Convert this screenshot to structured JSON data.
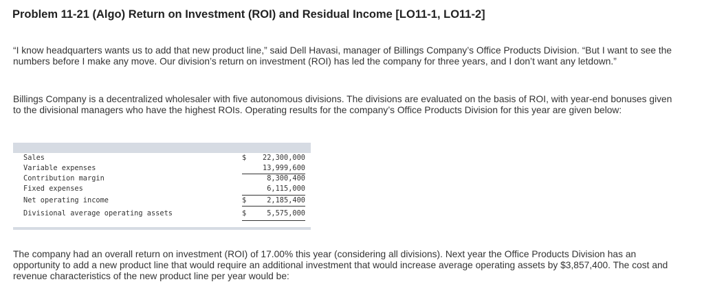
{
  "title": "Problem 11-21 (Algo) Return on Investment (ROI) and Residual Income [LO11-1, LO11-2]",
  "paragraphs": {
    "p1": "“I know headquarters wants us to add that new product line,” said Dell Havasi, manager of Billings Company’s Office Products Division. “But I want to see the numbers before I make any move. Our division’s return on investment (ROI) has led the company for three years, and I don’t want any letdown.”",
    "p2": "Billings Company is a decentralized wholesaler with five autonomous divisions. The divisions are evaluated on the basis of ROI, with year-end bonuses given to the divisional managers who have the highest ROIs. Operating results for the company’s Office Products Division for this year are given below:",
    "p3": "The company had an overall return on investment (ROI) of 17.00% this year (considering all divisions). Next year the Office Products Division has an opportunity to add a new product line that would require an additional investment that would increase average operating assets by $3,857,400. The cost and revenue characteristics of the new product line per year would be:"
  },
  "table": {
    "rows": [
      {
        "label": "Sales",
        "currency": "$",
        "amount": "22,300,000"
      },
      {
        "label": "Variable expenses",
        "currency": "",
        "amount": "13,999,600"
      },
      {
        "label": "Contribution margin",
        "currency": "",
        "amount": "8,300,400"
      },
      {
        "label": "Fixed expenses",
        "currency": "",
        "amount": "6,115,000"
      },
      {
        "label": "Net operating income",
        "currency": "$",
        "amount": "2,185,400"
      },
      {
        "label": "Divisional average operating assets",
        "currency": "$",
        "amount": "5,575,000"
      }
    ]
  }
}
